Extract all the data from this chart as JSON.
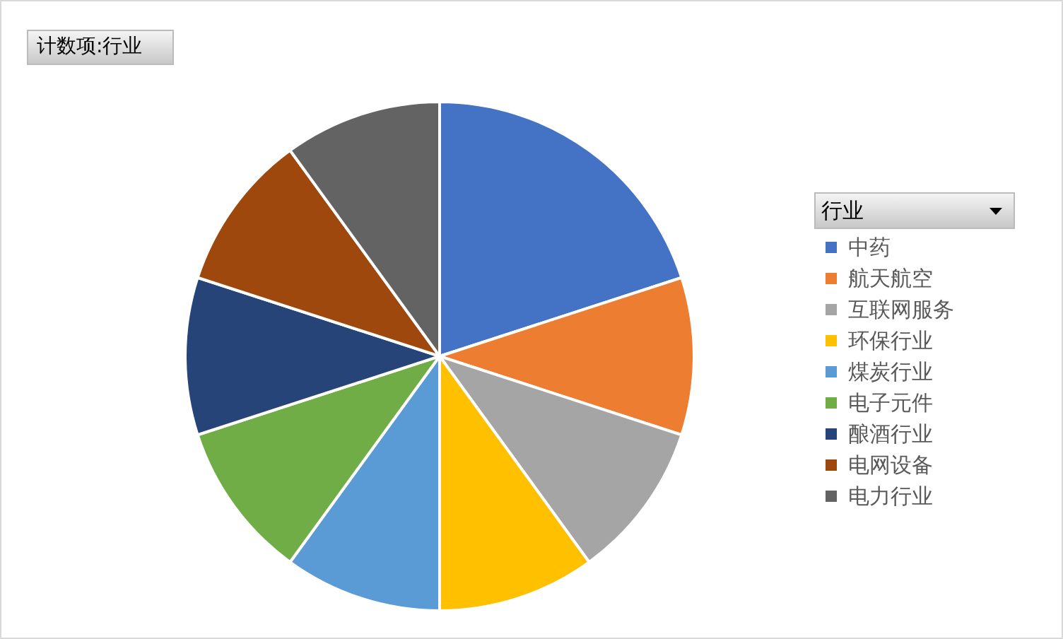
{
  "chart_data": {
    "type": "pie",
    "title": "计数项:行业",
    "legend_title": "行业",
    "legend": "right",
    "categories": [
      "中药",
      "航天航空",
      "互联网服务",
      "环保行业",
      "煤炭行业",
      "电子元件",
      "酿酒行业",
      "电网设备",
      "电力行业"
    ],
    "values": [
      20,
      10,
      10,
      10,
      10,
      10,
      10,
      10,
      10
    ],
    "colors": [
      "#4472c4",
      "#ed7d31",
      "#a5a5a5",
      "#ffc000",
      "#5b9bd5",
      "#70ad47",
      "#264478",
      "#9e480e",
      "#636363"
    ]
  }
}
